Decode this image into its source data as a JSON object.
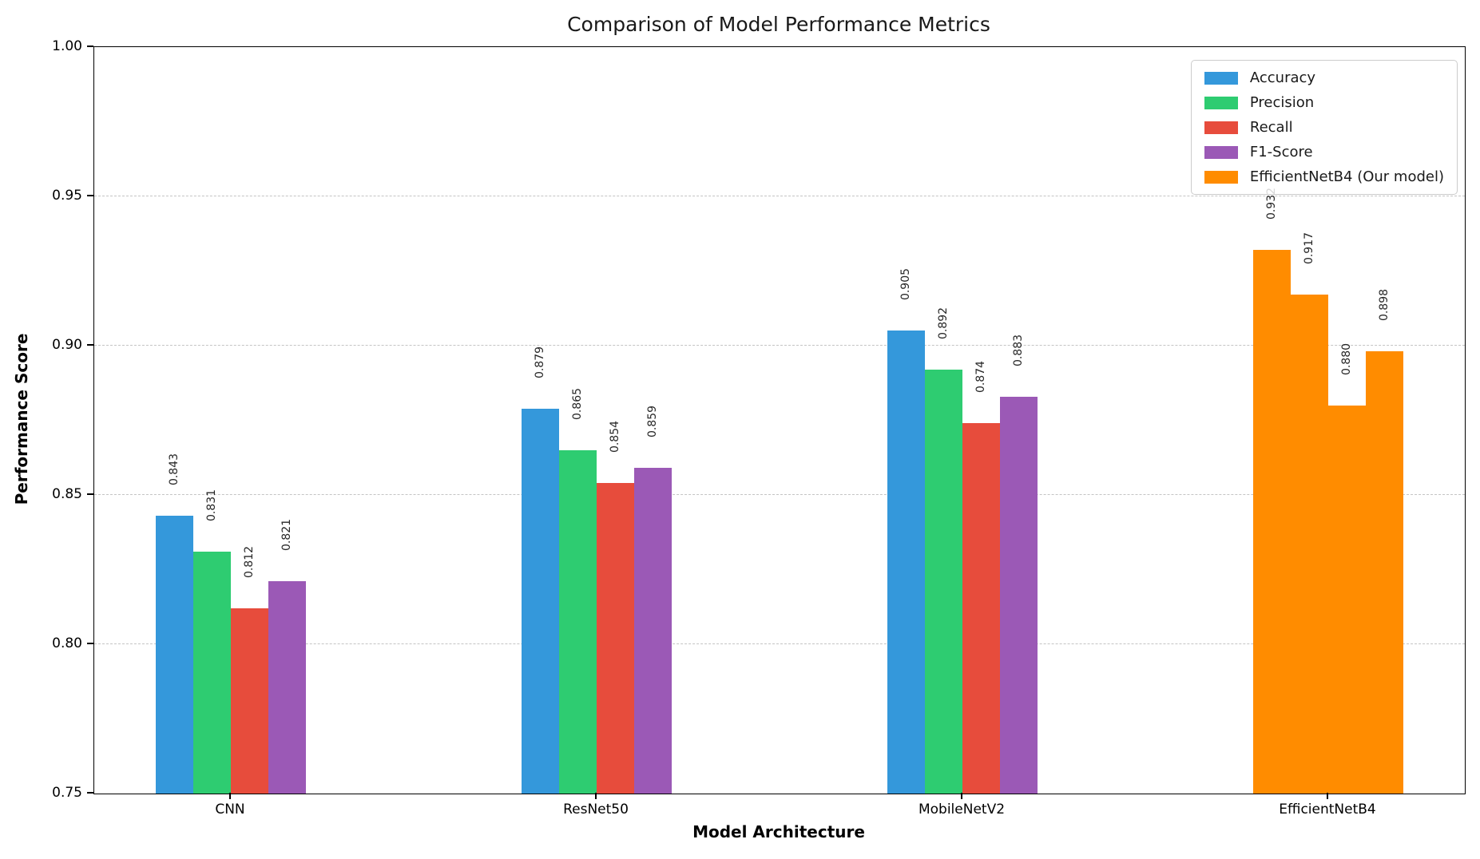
{
  "chart_data": {
    "type": "bar",
    "title": "Comparison of Model Performance Metrics",
    "xlabel": "Model Architecture",
    "ylabel": "Performance Score",
    "categories": [
      "CNN",
      "ResNet50",
      "MobileNetV2",
      "EfficientNetB4"
    ],
    "series": [
      {
        "name": "Accuracy",
        "color": "#3498db",
        "values": [
          0.843,
          0.879,
          0.905,
          0.932
        ]
      },
      {
        "name": "Precision",
        "color": "#2ecc71",
        "values": [
          0.831,
          0.865,
          0.892,
          0.917
        ]
      },
      {
        "name": "Recall",
        "color": "#e74c3c",
        "values": [
          0.812,
          0.854,
          0.874,
          0.88
        ]
      },
      {
        "name": "F1-Score",
        "color": "#9b59b6",
        "values": [
          0.821,
          0.859,
          0.883,
          0.898
        ]
      }
    ],
    "value_labels": [
      [
        "0.843",
        "0.879",
        "0.905",
        "0.932"
      ],
      [
        "0.831",
        "0.865",
        "0.892",
        "0.917"
      ],
      [
        "0.812",
        "0.854",
        "0.874",
        "0.880"
      ],
      [
        "0.821",
        "0.859",
        "0.883",
        "0.898"
      ]
    ],
    "highlight": {
      "category": "EfficientNetB4",
      "color": "#ff8c00"
    },
    "legend": {
      "position": "upper right",
      "entries": [
        {
          "label": "Accuracy",
          "color": "#3498db"
        },
        {
          "label": "Precision",
          "color": "#2ecc71"
        },
        {
          "label": "Recall",
          "color": "#e74c3c"
        },
        {
          "label": "F1-Score",
          "color": "#9b59b6"
        },
        {
          "label": "EfficientNetB4 (Our model)",
          "color": "#ff8c00"
        }
      ]
    },
    "ylim": [
      0.75,
      1.0
    ],
    "yticks": [
      1.0,
      0.95,
      0.9,
      0.85,
      0.8,
      0.75
    ],
    "ytick_labels": [
      "1.00",
      "0.95",
      "0.90",
      "0.85",
      "0.80",
      "0.75"
    ],
    "grid": {
      "axis": "y",
      "style": "dashed"
    },
    "value_label_rotation": 90
  }
}
